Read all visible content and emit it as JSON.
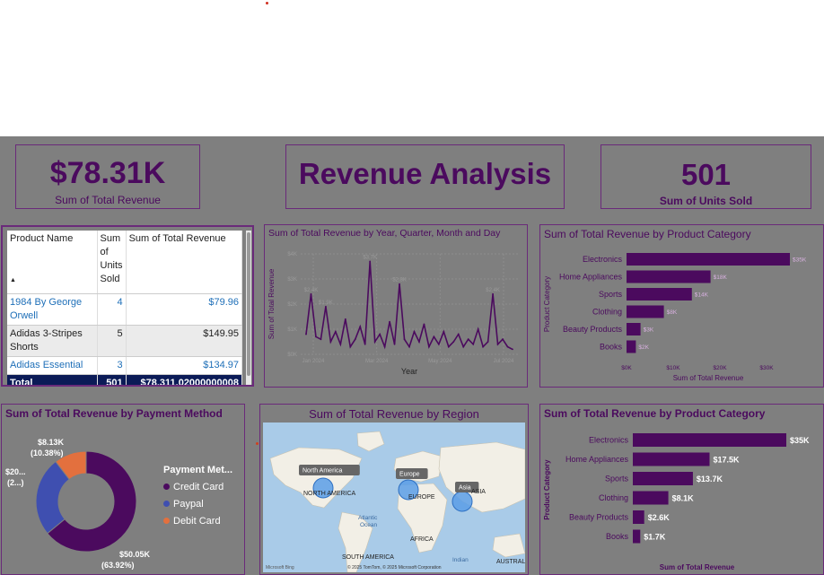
{
  "kpi_revenue": {
    "value": "$78.31K",
    "label": "Sum of Total Revenue"
  },
  "report_title": "Revenue Analysis",
  "kpi_units": {
    "value": "501",
    "label": "Sum of Units Sold"
  },
  "table": {
    "headers": [
      "Product Name",
      "Sum of Units Sold",
      "Sum of Total Revenue"
    ],
    "rows": [
      {
        "name": "1984 By George Orwell",
        "units": "4",
        "revenue": "$79.96"
      },
      {
        "name": "Adidas 3-Stripes Shorts",
        "units": "5",
        "revenue": "$149.95"
      },
      {
        "name": "Adidas Essential",
        "units": "3",
        "revenue": "$134.97"
      }
    ],
    "total": {
      "label": "Total",
      "units": "501",
      "revenue": "$78,311.02000000008"
    }
  },
  "line_chart_title": "Sum of Total Revenue by Year, Quarter, Month and Day",
  "bar_top_title": "Sum of Total Revenue by Product Category",
  "pie_title": "Sum of Total Revenue by Payment Method",
  "map_title": "Sum of Total Revenue by Region",
  "bar_bottom_title": "Sum of Total Revenue by Product Category",
  "pie_legend": {
    "title": "Payment Met...",
    "items": [
      "Credit Card",
      "Paypal",
      "Debit Card"
    ]
  },
  "map": {
    "bubble_labels": [
      "North America",
      "Europe",
      "Asia"
    ],
    "continents": [
      "NORTH AMERICA",
      "EUROPE",
      "ASIA",
      "AFRICA",
      "SOUTH AMERICA",
      "AUSTRALI"
    ],
    "oceans": [
      "Atlantic",
      "Ocean",
      "Indian"
    ],
    "credits": "Microsoft Bing",
    "copyright": "© 2025 TomTom, © 2025 Microsoft Corporation"
  },
  "chart_data": [
    {
      "type": "line",
      "title": "Sum of Total Revenue by Year, Quarter, Month and Day",
      "xlabel": "Year",
      "ylabel": "Sum of Total Revenue",
      "x_ticks": [
        "Jan 2024",
        "Mar 2024",
        "May 2024",
        "Jul 2024"
      ],
      "y_ticks": [
        "$0K",
        "$1K",
        "$2K",
        "$3K",
        "$4K"
      ],
      "ylim": [
        0,
        4
      ],
      "peak_labels": [
        "$2.4K",
        "$1.9K",
        "$3.7K",
        "$2.8K",
        "$2.4K"
      ],
      "values": [
        0.8,
        2.4,
        0.7,
        0.6,
        1.9,
        0.5,
        0.9,
        0.4,
        1.4,
        0.3,
        0.6,
        1.1,
        0.4,
        3.7,
        0.5,
        0.8,
        0.3,
        1.3,
        0.4,
        2.8,
        0.6,
        0.3,
        0.9,
        0.5,
        1.2,
        0.3,
        0.7,
        0.4,
        0.9,
        0.3,
        0.5,
        0.8,
        0.3,
        0.6,
        0.4,
        1.0,
        0.3,
        0.5,
        2.4,
        0.4,
        0.6,
        0.3,
        0.2
      ]
    },
    {
      "type": "bar",
      "orientation": "horizontal",
      "title": "Sum of Total Revenue by Product Category",
      "xlabel": "Sum of Total Revenue",
      "ylabel": "Product Category",
      "categories": [
        "Electronics",
        "Home Appliances",
        "Sports",
        "Clothing",
        "Beauty Products",
        "Books"
      ],
      "values": [
        35,
        18,
        14,
        8,
        3,
        2
      ],
      "data_labels": [
        "$35K",
        "$18K",
        "$14K",
        "$8K",
        "$3K",
        "$2K"
      ],
      "x_ticks": [
        "$0K",
        "$10K",
        "$20K",
        "$30K"
      ],
      "xlim": [
        0,
        35
      ]
    },
    {
      "type": "pie",
      "subtype": "donut",
      "title": "Sum of Total Revenue by Payment Method",
      "categories": [
        "Credit Card",
        "Paypal",
        "Debit Card"
      ],
      "values": [
        50.05,
        20,
        8.13
      ],
      "colors": [
        "#4b0a5e",
        "#3f4fb0",
        "#e3703e"
      ],
      "data_labels": [
        "$50.05K",
        "(63.92%)",
        "$20...",
        "(2...)",
        "$8.13K",
        "(10.38%)"
      ]
    },
    {
      "type": "bar",
      "orientation": "horizontal",
      "title": "Sum of Total Revenue by Product Category",
      "xlabel": "Sum of Total Revenue",
      "ylabel": "Product Category",
      "categories": [
        "Electronics",
        "Home Appliances",
        "Sports",
        "Clothing",
        "Beauty Products",
        "Books"
      ],
      "values": [
        35,
        17.5,
        13.7,
        8.1,
        2.6,
        1.7
      ],
      "data_labels": [
        "$35K",
        "$17.5K",
        "$13.7K",
        "$8.1K",
        "$2.6K",
        "$1.7K"
      ],
      "xlim": [
        0,
        35
      ]
    }
  ]
}
